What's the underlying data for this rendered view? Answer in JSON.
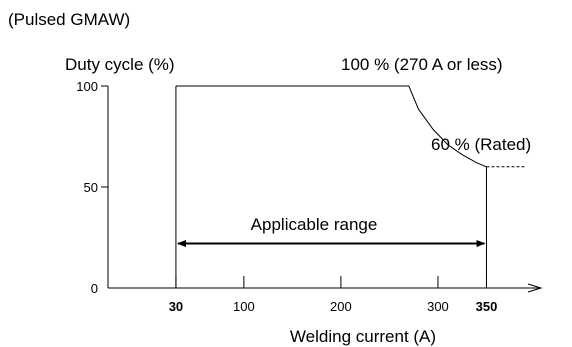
{
  "chart_data": {
    "type": "line",
    "caption": "(Pulsed GMAW)",
    "ylabel": "Duty cycle (%)",
    "xlabel": "Welding current (A)",
    "yticks": [
      {
        "value": 0,
        "label": "0"
      },
      {
        "value": 50,
        "label": "50"
      },
      {
        "value": 100,
        "label": "100"
      }
    ],
    "xticks": [
      {
        "value": 30,
        "label": "30",
        "bold": true
      },
      {
        "value": 100,
        "label": "100",
        "bold": false
      },
      {
        "value": 200,
        "label": "200",
        "bold": false
      },
      {
        "value": 300,
        "label": "300",
        "bold": false
      },
      {
        "value": 350,
        "label": "350",
        "bold": true
      }
    ],
    "series": [
      {
        "x": [
          30,
          270,
          280,
          295,
          310,
          325,
          340,
          350
        ],
        "y": [
          100,
          100,
          88.5,
          78.5,
          71,
          66,
          62,
          60
        ]
      }
    ],
    "extension": {
      "x": [
        350,
        400
      ],
      "y": [
        60,
        60
      ]
    },
    "annotations": {
      "full": "100 % (270 A or less)",
      "rated": "60 % (Rated)",
      "range": "Applicable range"
    },
    "range_arrow": {
      "from": 30,
      "to": 350,
      "y": 22
    },
    "xlim": [
      -40,
      400
    ],
    "ylim": [
      0,
      100
    ],
    "grid": false,
    "legend": "none"
  }
}
